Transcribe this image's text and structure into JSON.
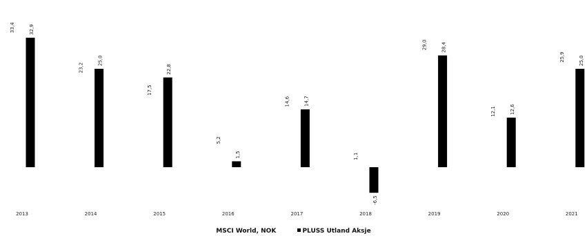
{
  "chart_data": {
    "type": "bar",
    "categories": [
      "2013",
      "2014",
      "2015",
      "2016",
      "2017",
      "2018",
      "2019",
      "2020",
      "2021"
    ],
    "series": [
      {
        "name": "MSCI World, NOK",
        "values": [
          null,
          null,
          null,
          null,
          null,
          null,
          null,
          null,
          null
        ],
        "labels": [
          "33.4",
          "23.2",
          "17.5",
          "5.2",
          "14.6",
          "1.1",
          "29.0",
          "12.1",
          "25.9"
        ],
        "color": "#ffffff"
      },
      {
        "name": "PLUSS Utland Aksje",
        "values": [
          32.9,
          25.0,
          22.8,
          1.5,
          14.7,
          -6.5,
          28.4,
          12.6,
          25.0
        ],
        "labels": [
          "32.9",
          "25.0",
          "22.8",
          "1.5",
          "14.7",
          "-6.5",
          "28.4",
          "12.6",
          "25.0"
        ],
        "color": "#000000"
      }
    ],
    "ylim": [
      -10,
      40
    ],
    "grid": false,
    "legend_position": "bottom"
  }
}
